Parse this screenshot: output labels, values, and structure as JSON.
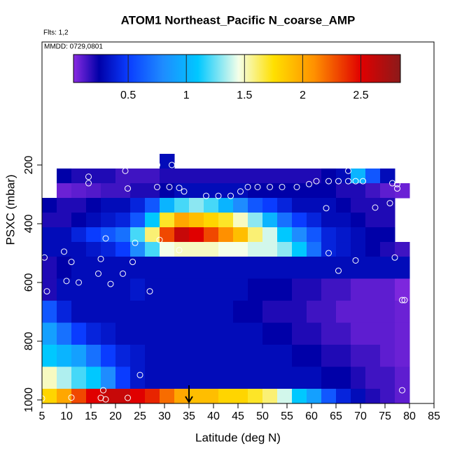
{
  "chart_data": {
    "type": "heatmap",
    "title": "ATOM1 Northeast_Pacific N_coarse_AMP",
    "subtitle": "Flts: 1,2",
    "annotation": "MMDD: 0729,0801",
    "xlabel": "Latitude (deg N)",
    "ylabel": "PSXC (mbar)",
    "xlim": [
      5,
      85
    ],
    "xticks": [
      5,
      10,
      15,
      20,
      25,
      30,
      35,
      40,
      45,
      50,
      55,
      60,
      65,
      70,
      75,
      80,
      85
    ],
    "ylim": [
      1012,
      -219
    ],
    "yticks": [
      200,
      400,
      600,
      800,
      1000
    ],
    "clim": [
      0.03,
      2.84
    ],
    "cticks": [
      0.5,
      1.0,
      1.5,
      2.0,
      2.5
    ],
    "colorscale": [
      [
        0.03,
        "#8a2be2"
      ],
      [
        0.25,
        "#0000a8"
      ],
      [
        0.5,
        "#0a3cff"
      ],
      [
        0.8,
        "#1e8cff"
      ],
      [
        1.1,
        "#00c8ff"
      ],
      [
        1.45,
        "#f5ffe8"
      ],
      [
        1.75,
        "#ffe000"
      ],
      [
        2.1,
        "#ff9000"
      ],
      [
        2.5,
        "#e00000"
      ],
      [
        2.84,
        "#8b1a1a"
      ]
    ],
    "lat_edges": [
      5,
      8,
      11,
      14,
      17,
      20,
      23,
      26,
      29,
      32,
      35,
      38,
      41,
      44,
      47,
      50,
      53,
      56,
      59,
      62,
      65,
      68,
      71,
      74,
      77,
      80
    ],
    "pressure_edges": [
      162,
      212,
      262,
      312,
      362,
      412,
      462,
      512,
      587,
      662,
      737,
      812,
      887,
      962,
      1012
    ],
    "values": [
      [
        null,
        null,
        null,
        null,
        null,
        null,
        null,
        null,
        0.3,
        null,
        null,
        null,
        null,
        null,
        null,
        null,
        null,
        null,
        null,
        null,
        null,
        null,
        null,
        null,
        null
      ],
      [
        null,
        0.25,
        0.2,
        0.2,
        0.2,
        0.15,
        0.15,
        0.15,
        0.2,
        0.2,
        0.2,
        0.2,
        0.2,
        0.2,
        0.2,
        0.2,
        0.2,
        0.2,
        0.2,
        0.25,
        0.3,
        1.0,
        0.6,
        0.3,
        null
      ],
      [
        null,
        0.08,
        0.1,
        0.12,
        0.15,
        0.15,
        0.2,
        0.2,
        0.25,
        0.3,
        0.3,
        0.3,
        0.3,
        0.3,
        0.25,
        0.25,
        0.25,
        0.25,
        0.25,
        0.25,
        0.2,
        0.2,
        0.15,
        0.1,
        0.08
      ],
      [
        0.25,
        0.2,
        0.2,
        0.25,
        0.3,
        0.3,
        0.4,
        0.6,
        1.0,
        1.2,
        1.3,
        1.2,
        1.0,
        0.8,
        0.6,
        0.5,
        0.4,
        0.3,
        0.3,
        0.3,
        0.25,
        0.2,
        0.2,
        0.2,
        null
      ],
      [
        0.2,
        0.2,
        0.25,
        0.3,
        0.35,
        0.4,
        0.6,
        1.1,
        1.7,
        2.0,
        1.9,
        1.8,
        1.7,
        1.5,
        1.3,
        1.0,
        0.7,
        0.5,
        0.4,
        0.3,
        0.3,
        0.25,
        0.2,
        0.2,
        null
      ],
      [
        0.3,
        0.3,
        0.4,
        0.5,
        0.6,
        0.7,
        1.2,
        1.6,
        2.3,
        2.6,
        2.5,
        2.3,
        2.1,
        1.9,
        1.6,
        1.4,
        1.1,
        0.8,
        0.6,
        0.4,
        0.35,
        0.3,
        0.25,
        0.25,
        null
      ],
      [
        0.3,
        0.3,
        0.3,
        0.35,
        0.4,
        0.5,
        0.8,
        1.2,
        1.45,
        1.5,
        1.5,
        1.5,
        1.45,
        1.45,
        1.4,
        1.4,
        1.3,
        1.1,
        0.7,
        0.4,
        0.35,
        0.3,
        0.25,
        0.2,
        0.15
      ],
      [
        0.2,
        0.25,
        0.3,
        0.3,
        0.3,
        0.3,
        0.3,
        0.3,
        0.3,
        0.3,
        0.3,
        0.3,
        0.3,
        0.3,
        0.3,
        0.3,
        0.3,
        0.3,
        0.3,
        0.3,
        0.3,
        0.3,
        0.3,
        0.3,
        0.3
      ],
      [
        0.2,
        0.3,
        0.3,
        0.3,
        0.3,
        0.3,
        0.35,
        0.3,
        0.3,
        0.3,
        0.3,
        0.3,
        0.3,
        0.3,
        0.25,
        0.25,
        0.25,
        0.2,
        0.2,
        0.15,
        0.15,
        0.1,
        0.1,
        0.1,
        0.05
      ],
      [
        0.6,
        0.4,
        0.3,
        0.3,
        0.3,
        0.3,
        0.3,
        0.3,
        0.3,
        0.3,
        0.3,
        0.3,
        0.3,
        0.25,
        0.25,
        0.2,
        0.2,
        0.2,
        0.15,
        0.15,
        0.1,
        0.1,
        0.1,
        0.1,
        0.08
      ],
      [
        0.9,
        0.7,
        0.5,
        0.4,
        0.35,
        0.3,
        0.3,
        0.3,
        0.3,
        0.3,
        0.3,
        0.3,
        0.3,
        0.3,
        0.3,
        0.25,
        0.25,
        0.2,
        0.2,
        0.15,
        0.15,
        0.1,
        0.1,
        0.1,
        0.08
      ],
      [
        1.1,
        1.0,
        0.9,
        0.7,
        0.5,
        0.4,
        0.35,
        0.3,
        0.3,
        0.3,
        0.3,
        0.3,
        0.3,
        0.3,
        0.3,
        0.3,
        0.3,
        0.25,
        0.25,
        0.2,
        0.2,
        0.15,
        0.15,
        0.1,
        0.08
      ],
      [
        1.5,
        1.35,
        1.2,
        1.1,
        0.8,
        0.5,
        0.35,
        0.3,
        0.3,
        0.3,
        0.3,
        0.3,
        0.3,
        0.3,
        0.3,
        0.3,
        0.3,
        0.3,
        0.3,
        0.25,
        0.25,
        0.2,
        0.15,
        0.15,
        0.1
      ],
      [
        1.8,
        2.0,
        2.3,
        2.5,
        2.6,
        2.6,
        2.5,
        2.4,
        2.2,
        2.0,
        1.9,
        1.9,
        1.8,
        1.8,
        1.7,
        1.6,
        1.4,
        1.1,
        0.9,
        0.6,
        0.4,
        0.3,
        0.2,
        0.15,
        0.1
      ]
    ],
    "points": {
      "lat": [
        28.5,
        31.5,
        22,
        67.5,
        6.5,
        14.5,
        6,
        14.5,
        22.5,
        28.5,
        31,
        33,
        34,
        38.5,
        41,
        43.5,
        45.5,
        47,
        49,
        51.5,
        54,
        57,
        59.5,
        61,
        63.5,
        65.5,
        67.5,
        69,
        70.5,
        76.5,
        77.5,
        77.5,
        76,
        73,
        63,
        18,
        24,
        29,
        33,
        9.5,
        63.5,
        5.5,
        17,
        77,
        11,
        23.5,
        69,
        65.5,
        21.5,
        16.5,
        10,
        12.5,
        19,
        6,
        27,
        78.5,
        79,
        25,
        78.5,
        17.5,
        5,
        11,
        17,
        18,
        22.5
      ],
      "pressure": [
        200,
        200,
        220,
        220,
        240,
        240,
        262,
        262,
        280,
        275,
        275,
        278,
        290,
        305,
        305,
        305,
        290,
        275,
        275,
        275,
        275,
        275,
        265,
        255,
        255,
        255,
        255,
        255,
        255,
        262,
        265,
        280,
        330,
        345,
        347,
        450,
        465,
        455,
        490,
        495,
        500,
        515,
        520,
        515,
        530,
        530,
        525,
        560,
        570,
        570,
        595,
        600,
        605,
        630,
        630,
        660,
        660,
        915,
        967,
        967,
        995,
        992,
        993,
        998,
        993
      ]
    },
    "arrow_lat": 35
  }
}
